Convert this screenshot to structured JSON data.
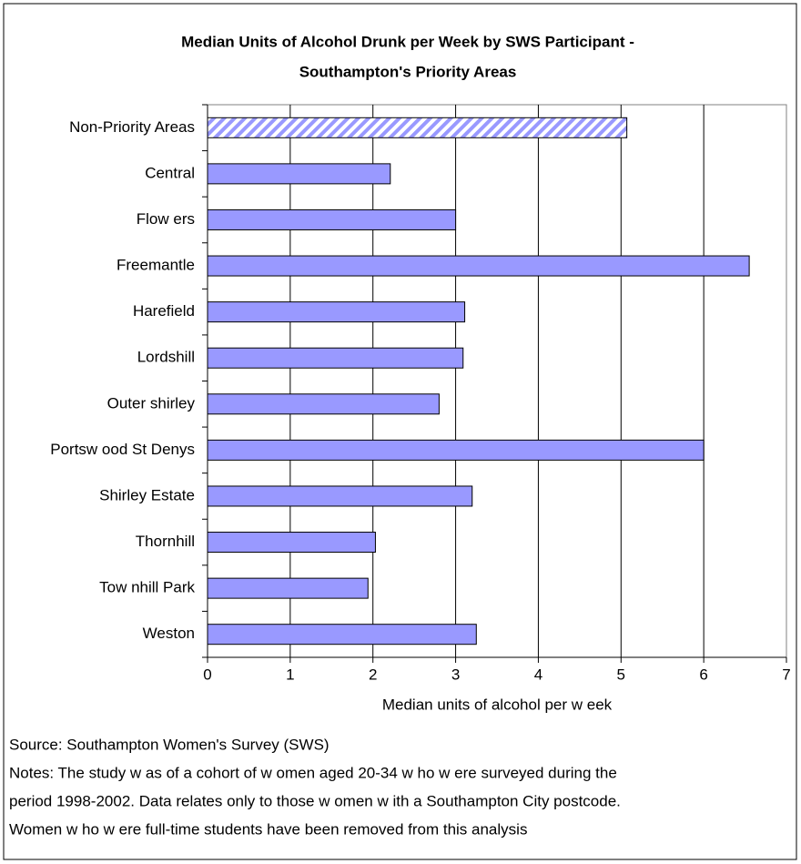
{
  "chart_data": {
    "type": "bar",
    "orientation": "horizontal",
    "title": [
      "Median Units of Alcohol Drunk per Week by SWS Participant -",
      "Southampton's Priority Areas"
    ],
    "categories": [
      "Non-Priority Areas",
      "Central",
      "Flow ers",
      "Freemantle",
      "Harefield",
      "Lordshill",
      "Outer shirley",
      "Portsw ood St Denys",
      "Shirley Estate",
      "Thornhill",
      "Tow nhill Park",
      "Weston"
    ],
    "values": [
      5.07,
      2.21,
      3.0,
      6.55,
      3.11,
      3.09,
      2.8,
      6.0,
      3.2,
      2.03,
      1.94,
      3.25
    ],
    "color": "#9999ff",
    "hatched": [
      0
    ],
    "xlabel": "Median units of alcohol per w eek",
    "xlim": [
      0,
      7
    ],
    "xticks": [
      0,
      1,
      2,
      3,
      4,
      5,
      6,
      7
    ],
    "grid": true,
    "footnotes": [
      "Source: Southampton Women's Survey (SWS)",
      "Notes: The study w as of a cohort of w omen aged 20-34 w ho w ere surveyed during the",
      "period 1998-2002. Data relates only to those w omen w ith a Southampton City postcode.",
      "Women w ho w ere full-time students have been removed from this analysis"
    ]
  }
}
